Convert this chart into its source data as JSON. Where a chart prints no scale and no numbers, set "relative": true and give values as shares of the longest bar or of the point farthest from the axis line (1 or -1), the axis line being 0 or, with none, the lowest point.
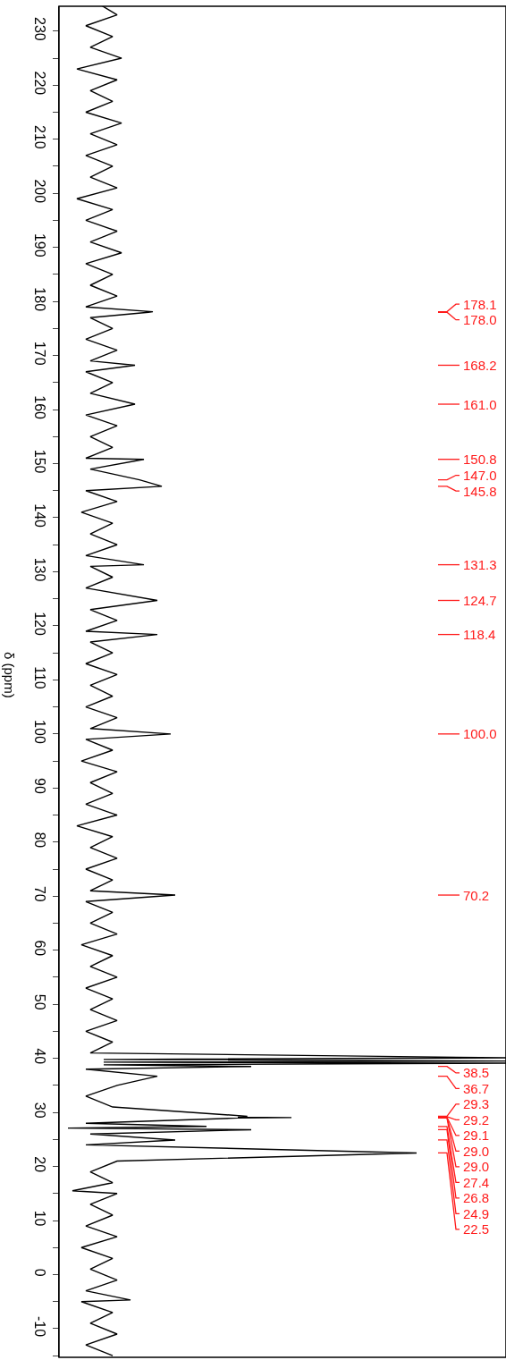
{
  "chart_data": {
    "type": "line",
    "orientation": "horizontal",
    "relative": true,
    "ylabel": "δ (ppm)",
    "color": "#000000",
    "ylim": [
      -15.3,
      234.6
    ],
    "yticks": [
      {
        "value": -15,
        "label": null
      },
      -10,
      {
        "value": -5,
        "label": null
      },
      0,
      {
        "value": 5,
        "label": null
      },
      10,
      {
        "value": 15,
        "label": null
      },
      20,
      {
        "value": 25,
        "label": null
      },
      30,
      {
        "value": 35,
        "label": null
      },
      40,
      {
        "value": 45,
        "label": null
      },
      50,
      {
        "value": 55,
        "label": null
      },
      60,
      {
        "value": 65,
        "label": null
      },
      70,
      {
        "value": 75,
        "label": null
      },
      80,
      {
        "value": 85,
        "label": null
      },
      90,
      {
        "value": 95,
        "label": null
      },
      100,
      {
        "value": 105,
        "label": null
      },
      110,
      {
        "value": 115,
        "label": null
      },
      120,
      {
        "value": 125,
        "label": null
      },
      130,
      {
        "value": 135,
        "label": null
      },
      140,
      {
        "value": 145,
        "label": null
      },
      150,
      {
        "value": 155,
        "label": null
      },
      160,
      {
        "value": 165,
        "label": null
      },
      170,
      {
        "value": 175,
        "label": null
      },
      180,
      {
        "value": 185,
        "label": null
      },
      190,
      {
        "value": 195,
        "label": null
      },
      200,
      {
        "value": 205,
        "label": null
      },
      210,
      {
        "value": 215,
        "label": null
      },
      220,
      {
        "value": 225,
        "label": null
      },
      230
    ],
    "x": [
      235,
      233,
      231,
      229,
      227,
      225,
      223,
      221,
      219,
      217,
      215,
      213,
      211,
      209,
      207,
      205,
      203,
      201,
      199,
      197,
      195,
      193,
      191,
      189,
      187,
      185,
      183,
      181,
      179,
      178.1,
      178.0,
      177,
      175,
      173,
      171,
      169,
      168.2,
      167,
      165,
      163,
      161.0,
      159,
      157,
      155,
      153,
      151,
      150.8,
      149,
      147.0,
      145.8,
      145,
      143,
      141,
      139,
      137,
      135,
      133,
      131.3,
      131,
      129,
      127,
      124.7,
      123,
      121,
      119,
      118.4,
      117,
      115,
      113,
      111,
      109,
      107,
      105,
      103,
      101,
      100.0,
      99,
      97,
      95,
      93,
      91,
      89,
      87,
      85,
      83,
      81,
      79,
      77,
      75,
      73,
      71,
      70.2,
      69,
      67,
      65,
      63,
      61,
      59,
      57,
      55,
      53,
      51,
      49,
      47,
      45,
      43,
      41,
      40.1,
      39.8,
      39.5,
      39.3,
      39.1,
      38.8,
      38.5,
      38,
      36.7,
      35,
      33,
      31,
      29.3,
      29.2,
      29.1,
      29.04,
      28.97,
      28,
      27.4,
      27.1,
      26.8,
      26,
      24.9,
      24,
      22.5,
      21,
      19,
      17,
      15.5,
      15,
      13,
      11,
      9,
      7,
      5,
      3,
      1,
      -1,
      -3,
      -4.7,
      -5,
      -7,
      -9,
      -11,
      -13,
      -15
    ],
    "values": [
      0.09,
      0.13,
      0.06,
      0.12,
      0.07,
      0.14,
      0.04,
      0.13,
      0.07,
      0.12,
      0.06,
      0.14,
      0.07,
      0.13,
      0.06,
      0.12,
      0.07,
      0.13,
      0.04,
      0.12,
      0.06,
      0.13,
      0.07,
      0.14,
      0.06,
      0.12,
      0.07,
      0.13,
      0.06,
      0.21,
      0.2,
      0.07,
      0.12,
      0.06,
      0.13,
      0.07,
      0.17,
      0.06,
      0.12,
      0.07,
      0.17,
      0.06,
      0.13,
      0.07,
      0.12,
      0.06,
      0.19,
      0.07,
      0.18,
      0.23,
      0.06,
      0.13,
      0.05,
      0.12,
      0.07,
      0.13,
      0.06,
      0.19,
      0.07,
      0.12,
      0.06,
      0.22,
      0.07,
      0.13,
      0.06,
      0.22,
      0.07,
      0.12,
      0.06,
      0.13,
      0.07,
      0.12,
      0.06,
      0.13,
      0.07,
      0.25,
      0.06,
      0.12,
      0.05,
      0.13,
      0.07,
      0.12,
      0.06,
      0.13,
      0.04,
      0.12,
      0.07,
      0.13,
      0.06,
      0.12,
      0.07,
      0.26,
      0.06,
      0.12,
      0.07,
      0.13,
      0.05,
      0.12,
      0.07,
      0.13,
      0.06,
      0.12,
      0.07,
      0.13,
      0.06,
      0.12,
      0.07,
      1.0,
      0.1,
      1.0,
      0.1,
      1.0,
      0.1,
      0.43,
      0.06,
      0.22,
      0.13,
      0.06,
      0.12,
      0.42,
      0.42,
      0.4,
      0.52,
      0.4,
      0.06,
      0.33,
      0.02,
      0.43,
      0.07,
      0.26,
      0.06,
      0.8,
      0.13,
      0.07,
      0.12,
      0.03,
      0.13,
      0.07,
      0.12,
      0.06,
      0.13,
      0.05,
      0.12,
      0.07,
      0.13,
      0.06,
      0.16,
      0.05,
      0.12,
      0.07,
      0.13,
      0.06,
      0.12
    ],
    "annotations": [
      "178.1",
      "178.0",
      "168.2",
      "161.0",
      "150.8",
      "147.0",
      "145.8",
      "131.3",
      "124.7",
      "118.4",
      "100.0",
      "70.2",
      "38.5",
      "36.7",
      "29.3",
      "29.2",
      "29.1",
      "29.0",
      "29.0",
      "27.4",
      "26.8",
      "24.9",
      "22.5"
    ]
  }
}
